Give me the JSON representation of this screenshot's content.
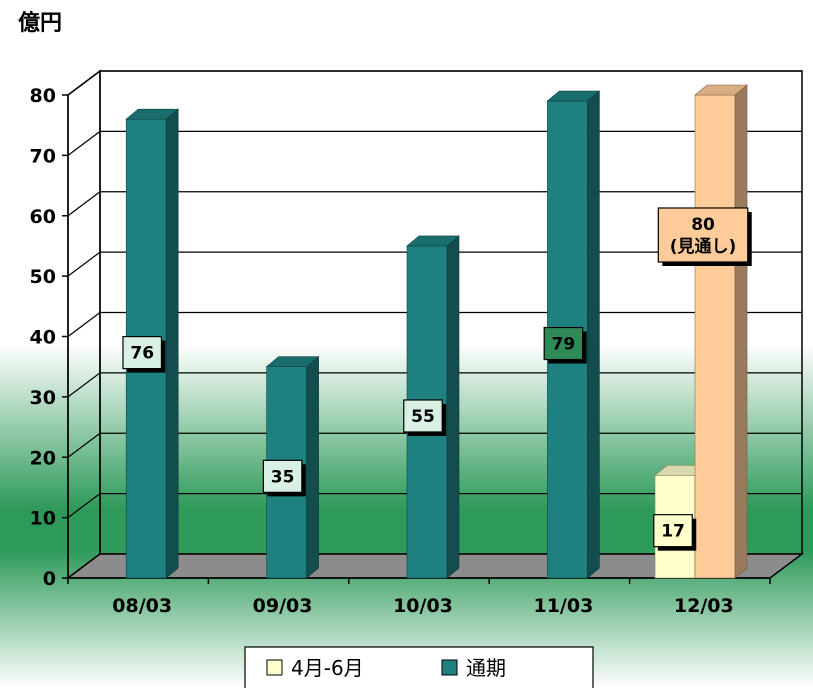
{
  "chart_data": {
    "type": "bar",
    "unit_label": "億円",
    "categories": [
      "08/03",
      "09/03",
      "10/03",
      "11/03",
      "12/03"
    ],
    "series": [
      {
        "name": "4月-6月",
        "color": "#FFFFCC",
        "values": [
          null,
          null,
          null,
          null,
          17
        ],
        "labels": [
          "",
          "",
          "",
          "",
          "17"
        ]
      },
      {
        "name": "通期",
        "color": "#1F8080",
        "values": [
          76,
          35,
          55,
          79,
          80
        ],
        "labels": [
          "76",
          "35",
          "55",
          "79",
          "80\n(見通し)"
        ],
        "point_colors": [
          null,
          null,
          null,
          null,
          "#FFCC99"
        ]
      }
    ],
    "ylim": [
      0,
      80
    ],
    "yticks": [
      0,
      10,
      20,
      30,
      40,
      50,
      60,
      70,
      80
    ],
    "grid": true,
    "legend_position": "bottom",
    "background_colors": {
      "top": "#FFFFFF",
      "band": "#2E9A5A"
    }
  }
}
